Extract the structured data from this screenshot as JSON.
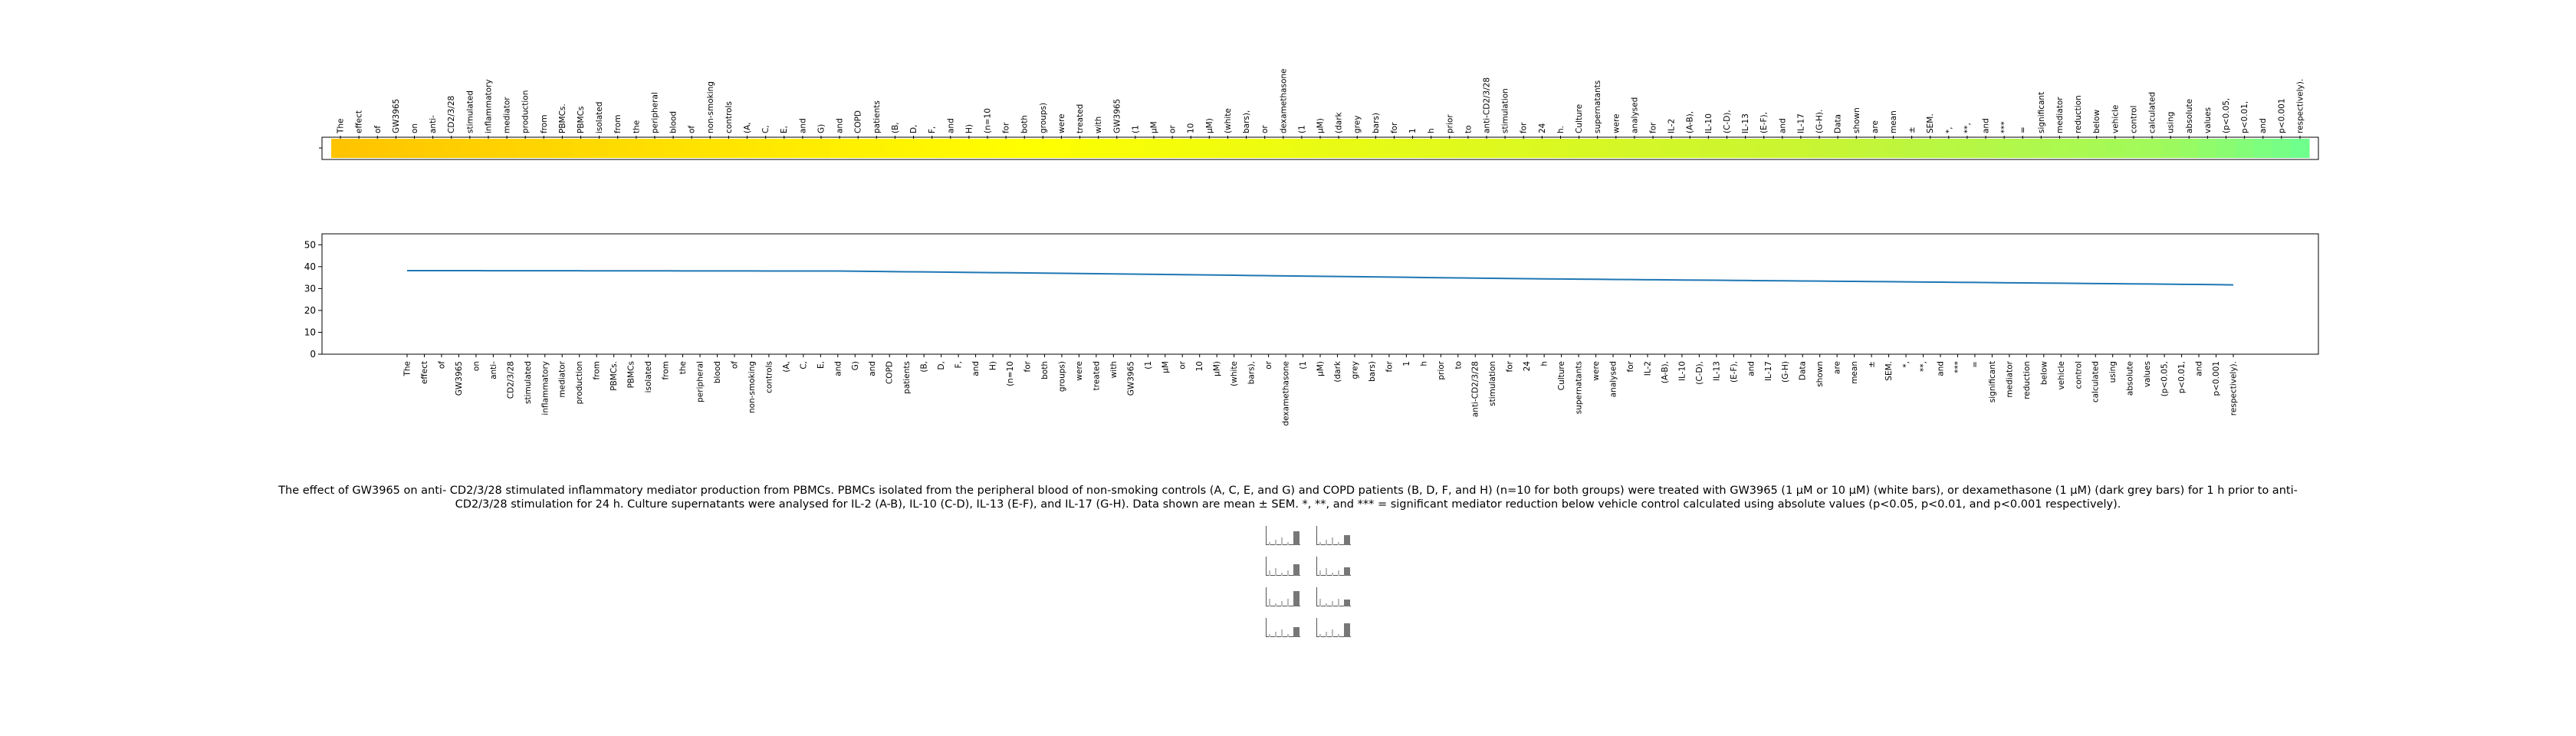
{
  "caption": "The effect of GW3965 on anti- CD2/3/28 stimulated inflammatory mediator production from PBMCs. PBMCs isolated from the peripheral blood of non-smoking controls (A, C, E, and G) and COPD patients (B, D, F, and H) (n=10 for both groups) were treated with GW3965 (1 μM or 10 μM) (white bars), or dexamethasone (1 μM) (dark grey bars) for 1 h prior to anti-CD2/3/28 stimulation for 24 h. Culture supernatants were analysed for IL-2 (A-B), IL-10 (C-D), IL-13 (E-F), and IL-17 (G-H). Data shown are mean ± SEM. *, **, and *** = significant mediator reduction below vehicle control calculated using absolute values (p<0.05, p<0.01, and p<0.001 respectively).",
  "chart_data": [
    {
      "type": "heatmap",
      "tokens": [
        "The",
        "effect",
        "of",
        "GW3965",
        "on",
        "anti-",
        "CD2/3/28",
        "stimulated",
        "inflammatory",
        "mediator",
        "production",
        "from",
        "PBMCs.",
        "PBMCs",
        "isolated",
        "from",
        "the",
        "peripheral",
        "blood",
        "of",
        "non-smoking",
        "controls",
        "(A,",
        "C,",
        "E,",
        "and",
        "G)",
        "and",
        "COPD",
        "patients",
        "(B,",
        "D,",
        "F,",
        "and",
        "H)",
        "(n=10",
        "for",
        "both",
        "groups)",
        "were",
        "treated",
        "with",
        "GW3965",
        "(1",
        "μM",
        "or",
        "10",
        "μM)",
        "(white",
        "bars),",
        "or",
        "dexamethasone",
        "(1",
        "μM)",
        "(dark",
        "grey",
        "bars)",
        "for",
        "1",
        "h",
        "prior",
        "to",
        "anti-CD2/3/28",
        "stimulation",
        "for",
        "24",
        "h.",
        "Culture",
        "supernatants",
        "were",
        "analysed",
        "for",
        "IL-2",
        "(A-B),",
        "IL-10",
        "(C-D),",
        "IL-13",
        "(E-F),",
        "and",
        "IL-17",
        "(G-H).",
        "Data",
        "shown",
        "are",
        "mean",
        "±",
        "SEM.",
        "*,",
        "**,",
        "and",
        "***",
        "=",
        "significant",
        "mediator",
        "reduction",
        "below",
        "vehicle",
        "control",
        "calculated",
        "using",
        "absolute",
        "values",
        "(p<0.05,",
        "p<0.01,",
        "and",
        "p<0.001",
        "respectively)."
      ],
      "colors": {
        "start": "#ffc400",
        "mid": "#ffff00",
        "late": "#c8f532",
        "end": "#6fff8c"
      }
    },
    {
      "type": "line",
      "series_color": "#1f77b4",
      "ylim": [
        0,
        55
      ],
      "yticks": [
        0,
        10,
        20,
        30,
        40,
        50
      ],
      "categories": [
        "The",
        "effect",
        "of",
        "GW3965",
        "on",
        "anti-",
        "CD2/3/28",
        "stimulated",
        "inflammatory",
        "mediator",
        "production",
        "from",
        "PBMCs.",
        "PBMCs",
        "isolated",
        "from",
        "the",
        "peripheral",
        "blood",
        "of",
        "non-smoking",
        "controls",
        "(A,",
        "C,",
        "E,",
        "and",
        "G)",
        "and",
        "COPD",
        "patients",
        "(B,",
        "D,",
        "F,",
        "and",
        "H)",
        "(n=10",
        "for",
        "both",
        "groups)",
        "were",
        "treated",
        "with",
        "GW3965",
        "(1",
        "μM",
        "or",
        "10",
        "μM)",
        "(white",
        "bars),",
        "or",
        "dexamethasone",
        "(1",
        "μM)",
        "(dark",
        "grey",
        "bars)",
        "for",
        "1",
        "h",
        "prior",
        "to",
        "anti-CD2/3/28",
        "stimulation",
        "for",
        "24",
        "h",
        "Culture",
        "supernatants",
        "were",
        "analysed",
        "for",
        "IL-2",
        "(A-B),",
        "IL-10",
        "(C-D),",
        "IL-13",
        "(E-F),",
        "and",
        "IL-17",
        "(G-H)",
        "Data",
        "shown",
        "are",
        "mean",
        "±",
        "SEM.",
        "*,",
        "**,",
        "and",
        "***",
        "=",
        "significant",
        "mediator",
        "reduction",
        "below",
        "vehicle",
        "control",
        "calculated",
        "using",
        "absolute",
        "values",
        "(p<0.05,",
        "p<0.01,",
        "and",
        "p<0.001",
        "respectively)."
      ],
      "anchors": [
        [
          0,
          38.2
        ],
        [
          25,
          38.0
        ],
        [
          40,
          36.8
        ],
        [
          65,
          34.5
        ],
        [
          85,
          33.2
        ],
        [
          105,
          31.8
        ],
        [
          115,
          30.5
        ],
        [
          120,
          29.8
        ],
        [
          125,
          26.5
        ]
      ]
    }
  ]
}
